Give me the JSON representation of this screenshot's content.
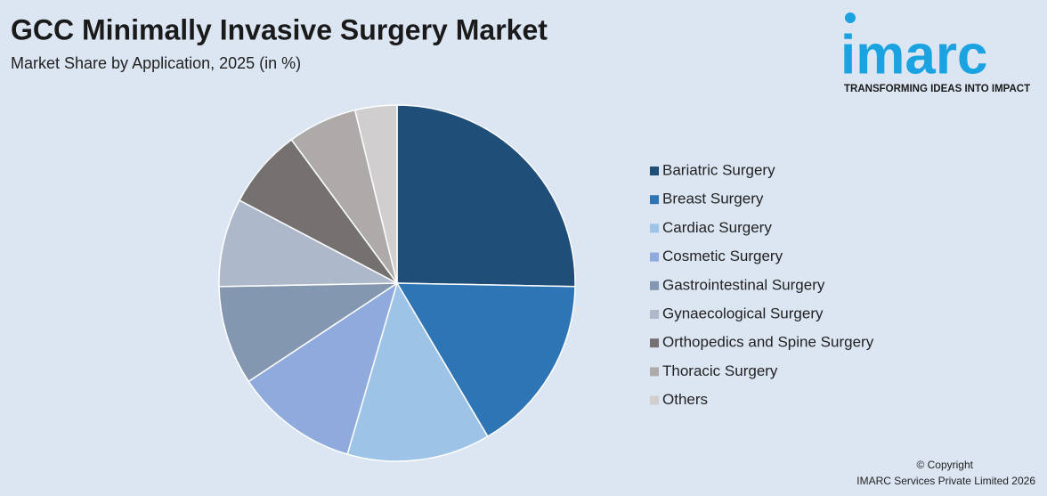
{
  "chart_data": {
    "type": "pie",
    "title": "GCC Minimally Invasive Surgery Market",
    "subtitle": "Market Share by Application, 2025 (in %)",
    "categories": [
      "Bariatric Surgery",
      "Breast Surgery",
      "Cardiac Surgery",
      "Cosmetic Surgery",
      "Gastrointestinal Surgery",
      "Gynaecological Surgery",
      "Orthopedics and Spine Surgery",
      "Thoracic Surgery",
      "Others"
    ],
    "values": [
      25.3,
      16.2,
      13,
      11.2,
      9,
      8,
      7.2,
      6.3,
      3.8
    ],
    "colors": [
      "#1f4e79",
      "#2e75b6",
      "#9dc3e6",
      "#8faadc",
      "#8497b0",
      "#adb9ca",
      "#767171",
      "#aeaaaa",
      "#d0cece"
    ],
    "legend": "right"
  },
  "brand": {
    "name": "imarc",
    "tagline": "TRANSFORMING IDEAS INTO IMPACT"
  },
  "footer": {
    "copyright": "© Copyright",
    "company": "IMARC Services Private Limited 2026"
  }
}
